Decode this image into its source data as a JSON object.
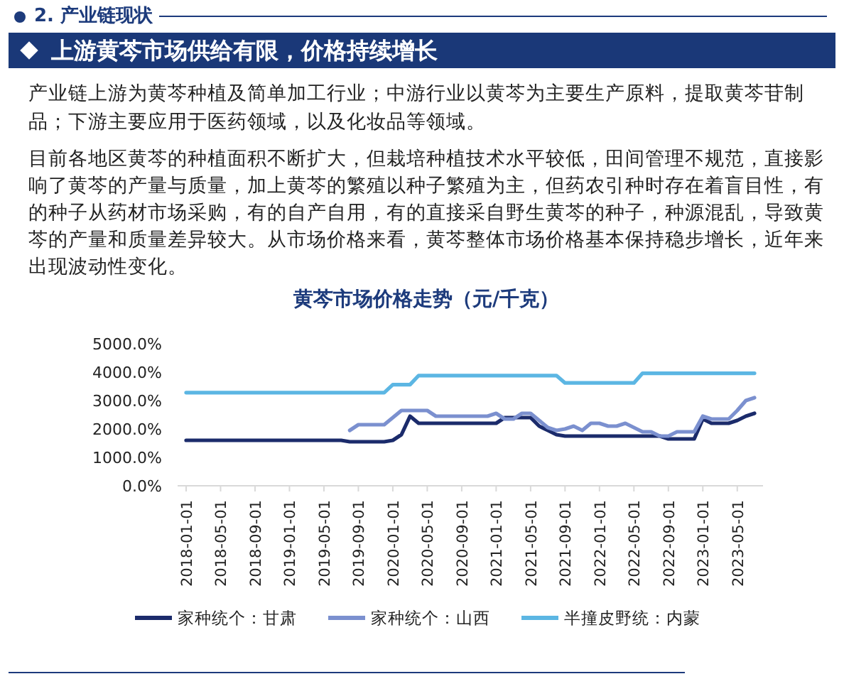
{
  "chart_data": {
    "type": "line",
    "title": "黄芩市场价格走势（元/千克）",
    "annotations": [
      "2. 产业链现状",
      "上游黄芩市场供给有限，价格持续增长",
      "产业链上游为黄芩种植及简单加工行业；中游行业以黄芩为主要生产原料，提取黄芩苷制品；下游主要应用于医药领域，以及化妆品等领域。",
      "目前各地区黄芩的种植面积不断扩大，但栽培种植技术水平较低，田间管理不规范，直接影响了黄芩的产量与质量，加上黄芩的繁殖以种子繁殖为主，但药农引种时存在着盲目性，有的种子从药材市场采购，有的自产自用，有的直接采自野生黄芩的种子，种源混乱，导致黄芩的产量和质量差异较大。从市场价格来看，黄芩整体市场价格基本保持稳步增长，近年来出现波动性变化。"
    ],
    "categories": [
      "2018-01-01",
      null,
      null,
      null,
      "2018-05-01",
      null,
      null,
      null,
      "2018-09-01",
      null,
      null,
      null,
      "2019-01-01",
      null,
      null,
      null,
      "2019-05-01",
      null,
      null,
      null,
      "2019-09-01",
      null,
      null,
      null,
      "2020-01-01",
      null,
      null,
      null,
      "2020-05-01",
      null,
      null,
      null,
      "2020-09-01",
      null,
      null,
      null,
      "2021-01-01",
      null,
      null,
      null,
      "2021-05-01",
      null,
      null,
      null,
      "2021-09-01",
      null,
      null,
      null,
      "2022-01-01",
      null,
      null,
      null,
      "2022-05-01",
      null,
      null,
      null,
      "2022-09-01",
      null,
      null,
      null,
      "2023-01-01",
      null,
      null,
      null,
      "2023-05-01",
      null,
      null
    ],
    "series": [
      {
        "name": "家种统个：甘肃",
        "color": "#1b2b6b",
        "values": [
          1600,
          1600,
          1600,
          1600,
          1600,
          1600,
          1600,
          1600,
          1600,
          1600,
          1600,
          1600,
          1600,
          1600,
          1600,
          1600,
          1600,
          1600,
          1600,
          1550,
          1550,
          1550,
          1550,
          1550,
          1600,
          1800,
          2450,
          2200,
          2200,
          2200,
          2200,
          2200,
          2200,
          2200,
          2200,
          2200,
          2200,
          2400,
          2400,
          2400,
          2400,
          2100,
          1950,
          1800,
          1750,
          1750,
          1750,
          1750,
          1750,
          1750,
          1750,
          1750,
          1750,
          1750,
          1750,
          1750,
          1650,
          1650,
          1650,
          1650,
          2350,
          2200,
          2200,
          2200,
          2300,
          2450,
          2550
        ]
      },
      {
        "name": "家种统个：山西",
        "color": "#7b90cf",
        "values": [
          null,
          null,
          null,
          null,
          null,
          null,
          null,
          null,
          null,
          null,
          null,
          null,
          null,
          null,
          null,
          null,
          null,
          null,
          null,
          1950,
          2150,
          2150,
          2150,
          2150,
          2400,
          2650,
          2650,
          2650,
          2650,
          2450,
          2450,
          2450,
          2450,
          2450,
          2450,
          2450,
          2550,
          2350,
          2350,
          2550,
          2550,
          2300,
          2050,
          1950,
          2000,
          2100,
          1950,
          2200,
          2200,
          2100,
          2100,
          2200,
          2050,
          1900,
          1900,
          1750,
          1750,
          1900,
          1900,
          1900,
          2450,
          2350,
          2350,
          2350,
          2650,
          3000,
          3100
        ]
      },
      {
        "name": "半撞皮野统：内蒙",
        "color": "#5cb6e3",
        "values": [
          3280,
          3280,
          3280,
          3280,
          3280,
          3280,
          3280,
          3280,
          3280,
          3280,
          3280,
          3280,
          3280,
          3280,
          3280,
          3280,
          3280,
          3280,
          3280,
          3280,
          3280,
          3280,
          3280,
          3280,
          3560,
          3560,
          3560,
          3880,
          3880,
          3880,
          3880,
          3880,
          3880,
          3880,
          3880,
          3880,
          3880,
          3880,
          3880,
          3880,
          3880,
          3880,
          3880,
          3880,
          3620,
          3620,
          3620,
          3620,
          3620,
          3620,
          3620,
          3620,
          3620,
          3960,
          3960,
          3960,
          3960,
          3960,
          3960,
          3960,
          3960,
          3960,
          3960,
          3960,
          3960,
          3960,
          3960
        ]
      }
    ],
    "ylim": [
      0,
      5000
    ],
    "yticks": [
      {
        "value": 0,
        "label": "0.0%"
      },
      {
        "value": 1000,
        "label": "1000.0%"
      },
      {
        "value": 2000,
        "label": "2000.0%"
      },
      {
        "value": 3000,
        "label": "3000.0%"
      },
      {
        "value": 4000,
        "label": "4000.0%"
      },
      {
        "value": 5000,
        "label": "5000.0%"
      }
    ],
    "grid": false,
    "legend": "bottom",
    "line_style": "solid"
  }
}
